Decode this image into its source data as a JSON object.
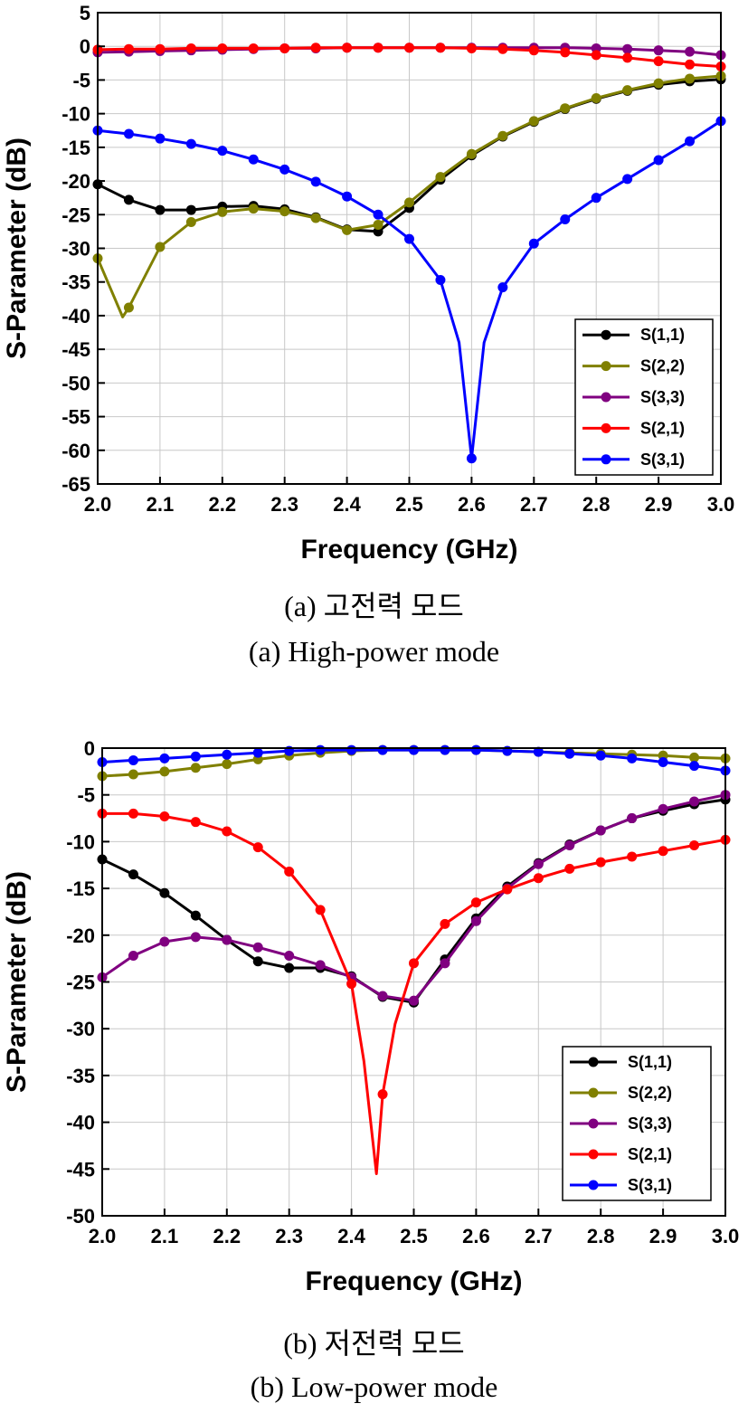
{
  "figures": [
    {
      "caption_korean": "(a) 고전력 모드",
      "caption_english": "(a) High-power mode"
    },
    {
      "caption_korean": "(b) 저전력 모드",
      "caption_english": "(b) Low-power mode"
    }
  ],
  "chart_data": [
    {
      "type": "line",
      "title": "",
      "xlabel": "Frequency (GHz)",
      "ylabel": "S-Parameter (dB)",
      "xlim": [
        2.0,
        3.0
      ],
      "ylim": [
        -65,
        5
      ],
      "xticks": [
        "2.0",
        "2.1",
        "2.2",
        "2.3",
        "2.4",
        "2.5",
        "2.6",
        "2.7",
        "2.8",
        "2.9",
        "3.0"
      ],
      "yticks": [
        "5",
        "0",
        "-5",
        "-10",
        "-15",
        "-20",
        "-25",
        "-30",
        "-35",
        "-40",
        "-45",
        "-50",
        "-55",
        "-60",
        "-65"
      ],
      "grid": true,
      "legend_position": "bottom-right",
      "series": [
        {
          "name": "S(1,1)",
          "color": "#000000",
          "x": [
            2.0,
            2.05,
            2.1,
            2.15,
            2.2,
            2.25,
            2.3,
            2.35,
            2.4,
            2.45,
            2.5,
            2.55,
            2.6,
            2.65,
            2.7,
            2.75,
            2.8,
            2.85,
            2.9,
            2.95,
            3.0
          ],
          "y": [
            -20.5,
            -22.8,
            -24.3,
            -24.3,
            -23.8,
            -23.7,
            -24.2,
            -25.4,
            -27.2,
            -27.5,
            -24.0,
            -19.8,
            -16.2,
            -13.4,
            -11.2,
            -9.3,
            -7.8,
            -6.6,
            -5.7,
            -5.2,
            -4.9
          ]
        },
        {
          "name": "S(2,2)",
          "color": "#808000",
          "x": [
            2.0,
            2.04,
            2.05,
            2.1,
            2.15,
            2.2,
            2.25,
            2.3,
            2.35,
            2.4,
            2.45,
            2.5,
            2.55,
            2.6,
            2.65,
            2.7,
            2.75,
            2.8,
            2.85,
            2.9,
            2.95,
            3.0
          ],
          "y": [
            -31.5,
            -40.2,
            -38.8,
            -29.8,
            -26.1,
            -24.6,
            -24.1,
            -24.5,
            -25.5,
            -27.3,
            -26.5,
            -23.2,
            -19.4,
            -16.0,
            -13.3,
            -11.1,
            -9.2,
            -7.7,
            -6.5,
            -5.5,
            -4.8,
            -4.4
          ]
        },
        {
          "name": "S(3,3)",
          "color": "#800080",
          "x": [
            2.0,
            2.05,
            2.1,
            2.15,
            2.2,
            2.25,
            2.3,
            2.35,
            2.4,
            2.45,
            2.5,
            2.55,
            2.6,
            2.65,
            2.7,
            2.75,
            2.8,
            2.85,
            2.9,
            2.95,
            3.0
          ],
          "y": [
            -0.9,
            -0.8,
            -0.7,
            -0.6,
            -0.5,
            -0.4,
            -0.3,
            -0.3,
            -0.2,
            -0.2,
            -0.2,
            -0.2,
            -0.2,
            -0.2,
            -0.2,
            -0.2,
            -0.3,
            -0.4,
            -0.6,
            -0.8,
            -1.3
          ]
        },
        {
          "name": "S(2,1)",
          "color": "#ff0000",
          "x": [
            2.0,
            2.05,
            2.1,
            2.15,
            2.2,
            2.25,
            2.3,
            2.35,
            2.4,
            2.45,
            2.5,
            2.55,
            2.6,
            2.65,
            2.7,
            2.75,
            2.8,
            2.85,
            2.9,
            2.95,
            3.0
          ],
          "y": [
            -0.5,
            -0.4,
            -0.4,
            -0.3,
            -0.3,
            -0.3,
            -0.3,
            -0.2,
            -0.2,
            -0.2,
            -0.2,
            -0.2,
            -0.3,
            -0.4,
            -0.6,
            -0.9,
            -1.3,
            -1.7,
            -2.2,
            -2.7,
            -3.0
          ]
        },
        {
          "name": "S(3,1)",
          "color": "#0000ff",
          "x": [
            2.0,
            2.05,
            2.1,
            2.15,
            2.2,
            2.25,
            2.3,
            2.35,
            2.4,
            2.45,
            2.5,
            2.55,
            2.58,
            2.6,
            2.62,
            2.65,
            2.7,
            2.75,
            2.8,
            2.85,
            2.9,
            2.95,
            3.0
          ],
          "y": [
            -12.5,
            -13.0,
            -13.7,
            -14.5,
            -15.5,
            -16.8,
            -18.3,
            -20.1,
            -22.3,
            -25.0,
            -28.6,
            -34.7,
            -44.0,
            -61.2,
            -44.0,
            -35.8,
            -29.3,
            -25.7,
            -22.5,
            -19.7,
            -16.9,
            -14.1,
            -11.1
          ]
        }
      ]
    },
    {
      "type": "line",
      "title": "",
      "xlabel": "Frequency (GHz)",
      "ylabel": "S-Parameter (dB)",
      "xlim": [
        2.0,
        3.0
      ],
      "ylim": [
        -50,
        0
      ],
      "xticks": [
        "2.0",
        "2.1",
        "2.2",
        "2.3",
        "2.4",
        "2.5",
        "2.6",
        "2.7",
        "2.8",
        "2.9",
        "3.0"
      ],
      "yticks": [
        "0",
        "-5",
        "-10",
        "-15",
        "-20",
        "-25",
        "-30",
        "-35",
        "-40",
        "-45",
        "-50"
      ],
      "grid": true,
      "legend_position": "bottom-right",
      "series": [
        {
          "name": "S(1,1)",
          "color": "#000000",
          "x": [
            2.0,
            2.05,
            2.1,
            2.15,
            2.2,
            2.25,
            2.3,
            2.35,
            2.4,
            2.45,
            2.5,
            2.55,
            2.6,
            2.65,
            2.7,
            2.75,
            2.8,
            2.85,
            2.9,
            2.95,
            3.0
          ],
          "y": [
            -11.9,
            -13.5,
            -15.5,
            -17.9,
            -20.5,
            -22.8,
            -23.5,
            -23.5,
            -24.4,
            -26.6,
            -27.2,
            -22.6,
            -18.2,
            -14.8,
            -12.3,
            -10.3,
            -8.8,
            -7.5,
            -6.7,
            -6.0,
            -5.5
          ]
        },
        {
          "name": "S(2,2)",
          "color": "#808000",
          "x": [
            2.0,
            2.05,
            2.1,
            2.15,
            2.2,
            2.25,
            2.3,
            2.35,
            2.4,
            2.45,
            2.5,
            2.55,
            2.6,
            2.65,
            2.7,
            2.75,
            2.8,
            2.85,
            2.9,
            2.95,
            3.0
          ],
          "y": [
            -3.0,
            -2.8,
            -2.5,
            -2.1,
            -1.7,
            -1.2,
            -0.8,
            -0.5,
            -0.3,
            -0.2,
            -0.2,
            -0.2,
            -0.2,
            -0.3,
            -0.4,
            -0.5,
            -0.6,
            -0.7,
            -0.8,
            -1.0,
            -1.1
          ]
        },
        {
          "name": "S(3,3)",
          "color": "#800080",
          "x": [
            2.0,
            2.05,
            2.1,
            2.15,
            2.2,
            2.25,
            2.3,
            2.35,
            2.4,
            2.45,
            2.5,
            2.55,
            2.6,
            2.65,
            2.7,
            2.75,
            2.8,
            2.85,
            2.9,
            2.95,
            3.0
          ],
          "y": [
            -24.5,
            -22.2,
            -20.7,
            -20.2,
            -20.5,
            -21.3,
            -22.2,
            -23.2,
            -24.5,
            -26.5,
            -27.0,
            -23.0,
            -18.5,
            -15.0,
            -12.4,
            -10.4,
            -8.8,
            -7.5,
            -6.5,
            -5.7,
            -5.0
          ]
        },
        {
          "name": "S(2,1)",
          "color": "#ff0000",
          "x": [
            2.0,
            2.05,
            2.1,
            2.15,
            2.2,
            2.25,
            2.3,
            2.35,
            2.4,
            2.42,
            2.44,
            2.45,
            2.47,
            2.5,
            2.55,
            2.6,
            2.65,
            2.7,
            2.75,
            2.8,
            2.85,
            2.9,
            2.95,
            3.0
          ],
          "y": [
            -7.0,
            -7.0,
            -7.3,
            -7.9,
            -8.9,
            -10.6,
            -13.2,
            -17.3,
            -25.2,
            -33.5,
            -45.5,
            -37.0,
            -29.5,
            -23.0,
            -18.8,
            -16.5,
            -15.1,
            -13.9,
            -12.9,
            -12.2,
            -11.6,
            -11.0,
            -10.4,
            -9.8
          ]
        },
        {
          "name": "S(3,1)",
          "color": "#0000ff",
          "x": [
            2.0,
            2.05,
            2.1,
            2.15,
            2.2,
            2.25,
            2.3,
            2.35,
            2.4,
            2.45,
            2.5,
            2.55,
            2.6,
            2.65,
            2.7,
            2.75,
            2.8,
            2.85,
            2.9,
            2.95,
            3.0
          ],
          "y": [
            -1.5,
            -1.3,
            -1.1,
            -0.9,
            -0.7,
            -0.5,
            -0.3,
            -0.2,
            -0.2,
            -0.2,
            -0.2,
            -0.2,
            -0.2,
            -0.3,
            -0.4,
            -0.6,
            -0.8,
            -1.1,
            -1.5,
            -1.9,
            -2.4
          ]
        }
      ]
    }
  ]
}
